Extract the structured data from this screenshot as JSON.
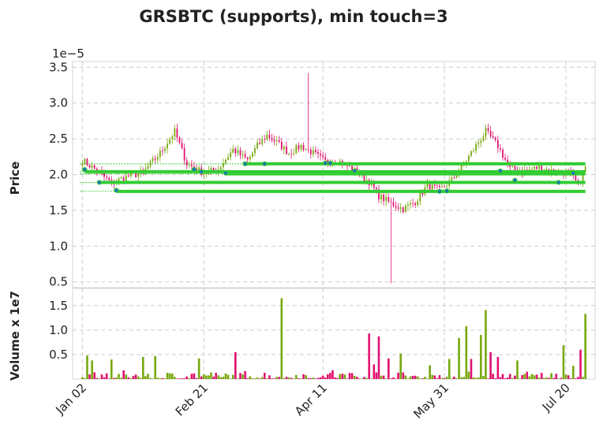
{
  "chart_data": {
    "type": "candlestick",
    "title": "GRSBTC (supports), min touch=3",
    "price_panel": {
      "ylabel": "Price",
      "scale_label": "1e−5",
      "ylim": [
        0.42,
        3.58
      ],
      "yticks": [
        "0.5",
        "1.0",
        "1.5",
        "2.0",
        "2.5",
        "3.0",
        "3.5"
      ],
      "ytick_values": [
        0.5,
        1.0,
        1.5,
        2.0,
        2.5,
        3.0,
        3.5
      ]
    },
    "volume_panel": {
      "ylabel": "Volume x 1e7",
      "ylim": [
        0,
        1.85
      ],
      "yticks": [
        "0.5",
        "1.0",
        "1.5"
      ],
      "ytick_values": [
        0.5,
        1.0,
        1.5
      ]
    },
    "xlim": [
      -4,
      211
    ],
    "xticks": [
      "Jan 02",
      "Feb 21",
      "Apr 11",
      "May 31",
      "Jul 20"
    ],
    "xtick_values": [
      0,
      50,
      99,
      149,
      199
    ],
    "n_days": 208,
    "colors": {
      "up": "#77a80e",
      "down": "#e0126f",
      "support": "#32cd32",
      "touch_marker": "#1f77b4"
    },
    "price_path": [
      [
        0,
        2.2
      ],
      [
        5,
        2.08
      ],
      [
        12,
        1.88
      ],
      [
        18,
        1.97
      ],
      [
        25,
        2.03
      ],
      [
        32,
        2.3
      ],
      [
        38,
        2.6
      ],
      [
        43,
        2.15
      ],
      [
        50,
        2.02
      ],
      [
        56,
        2.08
      ],
      [
        62,
        2.35
      ],
      [
        68,
        2.2
      ],
      [
        72,
        2.4
      ],
      [
        76,
        2.55
      ],
      [
        80,
        2.45
      ],
      [
        85,
        2.3
      ],
      [
        90,
        2.4
      ],
      [
        95,
        2.3
      ],
      [
        100,
        2.18
      ],
      [
        105,
        2.2
      ],
      [
        110,
        2.1
      ],
      [
        114,
        2.0
      ],
      [
        118,
        1.9
      ],
      [
        122,
        1.7
      ],
      [
        127,
        1.6
      ],
      [
        132,
        1.52
      ],
      [
        137,
        1.62
      ],
      [
        142,
        1.85
      ],
      [
        147,
        1.78
      ],
      [
        152,
        1.92
      ],
      [
        157,
        2.15
      ],
      [
        162,
        2.4
      ],
      [
        166,
        2.6
      ],
      [
        171,
        2.4
      ],
      [
        176,
        2.08
      ],
      [
        182,
        2.05
      ],
      [
        188,
        2.1
      ],
      [
        193,
        2.05
      ],
      [
        198,
        2.03
      ],
      [
        201,
        2.0
      ],
      [
        204,
        1.85
      ],
      [
        207,
        2.1
      ]
    ],
    "spikes": [
      [
        93,
        3.42,
        2.55
      ],
      [
        127,
        0.48,
        1.35
      ]
    ],
    "volume_spikes": [
      [
        2,
        0.48,
        "up"
      ],
      [
        4,
        0.38,
        "up"
      ],
      [
        12,
        0.4,
        "up"
      ],
      [
        25,
        0.45,
        "up"
      ],
      [
        30,
        0.47,
        "up"
      ],
      [
        48,
        0.42,
        "up"
      ],
      [
        63,
        0.55,
        "down"
      ],
      [
        82,
        1.65,
        "up"
      ],
      [
        103,
        0.18,
        "down"
      ],
      [
        118,
        0.93,
        "down"
      ],
      [
        120,
        0.3,
        "down"
      ],
      [
        122,
        0.87,
        "down"
      ],
      [
        126,
        0.42,
        "down"
      ],
      [
        131,
        0.52,
        "up"
      ],
      [
        143,
        0.28,
        "up"
      ],
      [
        151,
        0.41,
        "up"
      ],
      [
        155,
        0.84,
        "up"
      ],
      [
        158,
        1.08,
        "up"
      ],
      [
        160,
        0.41,
        "down"
      ],
      [
        164,
        0.9,
        "up"
      ],
      [
        166,
        1.41,
        "up"
      ],
      [
        168,
        0.55,
        "down"
      ],
      [
        171,
        0.45,
        "down"
      ],
      [
        179,
        0.38,
        "up"
      ],
      [
        198,
        0.69,
        "up"
      ],
      [
        202,
        0.27,
        "up"
      ],
      [
        205,
        0.6,
        "down"
      ],
      [
        207,
        1.33,
        "up"
      ]
    ],
    "supports": [
      {
        "level": 2.15,
        "start": 66
      },
      {
        "level": 2.04,
        "start": 1
      },
      {
        "level": 2.01,
        "start": 59
      },
      {
        "level": 1.89,
        "start": 7
      },
      {
        "level": 1.765,
        "start": 14
      }
    ],
    "dashed_levels": [
      2.15,
      2.04,
      2.01,
      1.89,
      1.765
    ],
    "touches": [
      [
        1,
        2.07
      ],
      [
        7,
        1.89
      ],
      [
        14,
        1.78
      ],
      [
        46,
        2.07
      ],
      [
        49,
        2.04
      ],
      [
        59,
        2.02
      ],
      [
        67,
        2.15
      ],
      [
        75,
        2.15
      ],
      [
        100,
        2.16
      ],
      [
        102,
        2.16
      ],
      [
        112,
        2.05
      ],
      [
        147,
        1.765
      ],
      [
        150,
        1.77
      ],
      [
        172,
        2.05
      ],
      [
        178,
        1.92
      ],
      [
        196,
        1.89
      ],
      [
        202,
        2.02
      ]
    ]
  }
}
